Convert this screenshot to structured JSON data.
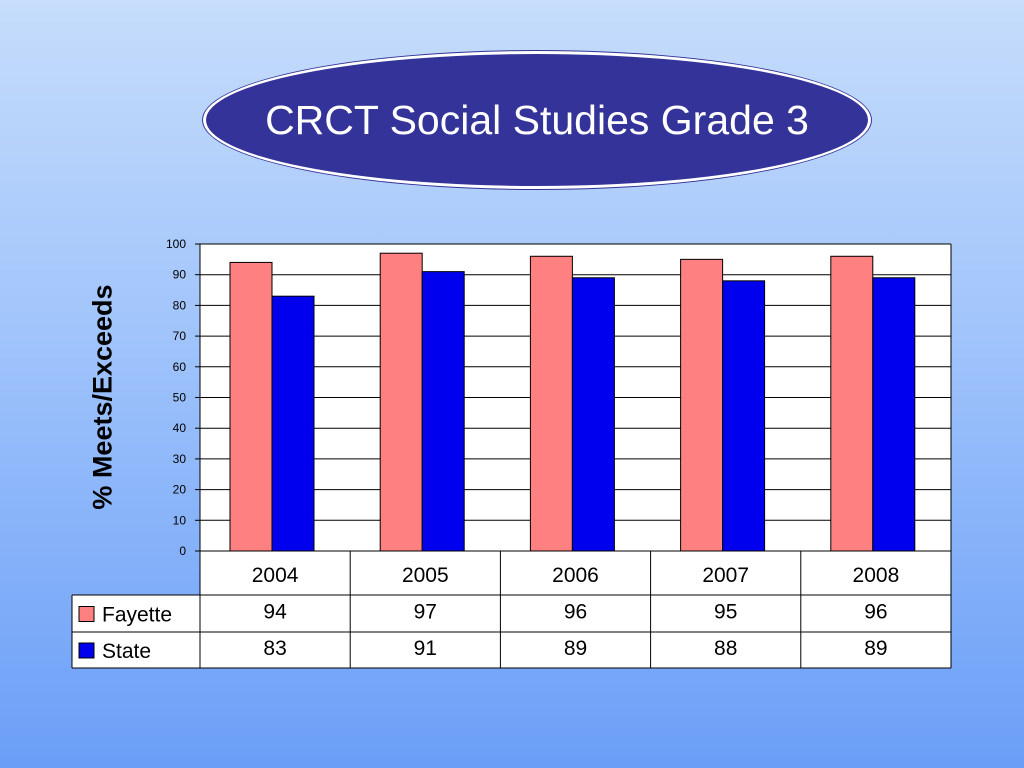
{
  "title": "CRCT Social Studies Grade 3",
  "colors": {
    "title_bg": "#333399",
    "fayette": "#ff8080",
    "state": "#0000ee"
  },
  "chart_data": {
    "type": "bar",
    "title": "CRCT Social Studies Grade 3",
    "xlabel": "",
    "ylabel": "% Meets/Exceeds",
    "ylim": [
      0,
      100
    ],
    "yticks": [
      0,
      10,
      20,
      30,
      40,
      50,
      60,
      70,
      80,
      90,
      100
    ],
    "grid": true,
    "legend": "data-table",
    "categories": [
      "2004",
      "2005",
      "2006",
      "2007",
      "2008"
    ],
    "series": [
      {
        "name": "Fayette",
        "color": "#ff8080",
        "values": [
          94,
          97,
          96,
          95,
          96
        ]
      },
      {
        "name": "State",
        "color": "#0000ee",
        "values": [
          83,
          91,
          89,
          88,
          89
        ]
      }
    ]
  }
}
